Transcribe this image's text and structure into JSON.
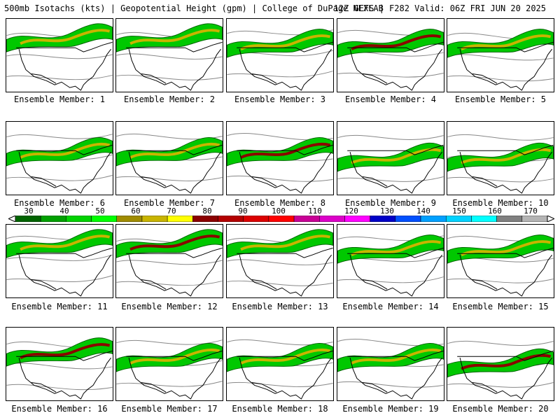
{
  "header": {
    "left": "500mb Isotachs (kts) | Geopotential Height (gpm) | College of DuPage NEXLAB",
    "right": "12Z GEFS | F282 Valid: 06Z FRI JUN 20 2025"
  },
  "legend": {
    "labels": [
      "30",
      "40",
      "50",
      "60",
      "70",
      "80",
      "90",
      "100",
      "110",
      "120",
      "130",
      "140",
      "150",
      "160",
      "170"
    ],
    "colors": [
      "#006400",
      "#00a000",
      "#00d200",
      "#00ff00",
      "#a08c00",
      "#c8b400",
      "#ffff00",
      "#8b0000",
      "#b40000",
      "#dc0000",
      "#ff0000",
      "#c80096",
      "#dc00c8",
      "#ff00ff",
      "#0000c8",
      "#0050ff",
      "#00a0ff",
      "#00d2ff",
      "#00ffff",
      "#808080",
      "#b4b4b4"
    ]
  },
  "members": [
    {
      "label": "Ensemble Member: 1"
    },
    {
      "label": "Ensemble Member: 2"
    },
    {
      "label": "Ensemble Member: 3"
    },
    {
      "label": "Ensemble Member: 4"
    },
    {
      "label": "Ensemble Member: 5"
    },
    {
      "label": "Ensemble Member: 6"
    },
    {
      "label": "Ensemble Member: 7"
    },
    {
      "label": "Ensemble Member: 8"
    },
    {
      "label": "Ensemble Member: 9"
    },
    {
      "label": "Ensemble Member: 10"
    },
    {
      "label": "Ensemble Member: 11"
    },
    {
      "label": "Ensemble Member: 12"
    },
    {
      "label": "Ensemble Member: 13"
    },
    {
      "label": "Ensemble Member: 14"
    },
    {
      "label": "Ensemble Member: 15"
    },
    {
      "label": "Ensemble Member: 16"
    },
    {
      "label": "Ensemble Member: 17"
    },
    {
      "label": "Ensemble Member: 18"
    },
    {
      "label": "Ensemble Member: 19"
    },
    {
      "label": "Ensemble Member: 20"
    }
  ]
}
